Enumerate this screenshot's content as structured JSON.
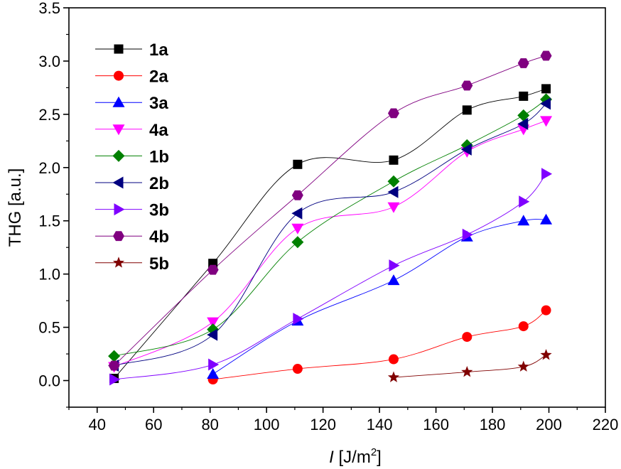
{
  "chart_data": {
    "type": "line",
    "title": "",
    "xlabel": "I [J/m²]",
    "xlabel_italic": "I",
    "xlabel_unit": " [J/m",
    "xlabel_sup": "2",
    "xlabel_close": "]",
    "ylabel": "THG [a.u.]",
    "xlim": [
      30,
      220
    ],
    "ylim": [
      -0.25,
      3.5
    ],
    "xticks": [
      "40",
      "60",
      "80",
      "100",
      "120",
      "140",
      "160",
      "180",
      "200",
      "220"
    ],
    "yticks": [
      "0.0",
      "0.5",
      "1.0",
      "1.5",
      "2.0",
      "2.5",
      "3.0",
      "3.5"
    ],
    "legend_position": "top-left",
    "series": [
      {
        "name": "1a",
        "color": "#000000",
        "marker": "square",
        "x": [
          46,
          81,
          111,
          145,
          171,
          191,
          199
        ],
        "y": [
          0.02,
          1.1,
          2.03,
          2.07,
          2.54,
          2.67,
          2.74
        ]
      },
      {
        "name": "2a",
        "color": "#ff0000",
        "marker": "circle",
        "x": [
          81,
          111,
          145,
          171,
          191,
          199
        ],
        "y": [
          0.01,
          0.11,
          0.2,
          0.41,
          0.51,
          0.66
        ]
      },
      {
        "name": "3a",
        "color": "#0000ff",
        "marker": "triangle-up",
        "x": [
          81,
          111,
          145,
          171,
          191,
          199
        ],
        "y": [
          0.06,
          0.56,
          0.94,
          1.35,
          1.5,
          1.51
        ]
      },
      {
        "name": "4a",
        "color": "#ff00ff",
        "marker": "triangle-down",
        "x": [
          46,
          81,
          111,
          145,
          171,
          191,
          199
        ],
        "y": [
          0.13,
          0.55,
          1.43,
          1.63,
          2.15,
          2.36,
          2.44
        ]
      },
      {
        "name": "1b",
        "color": "#008000",
        "marker": "diamond",
        "x": [
          46,
          81,
          111,
          145,
          171,
          191,
          199
        ],
        "y": [
          0.23,
          0.48,
          1.3,
          1.87,
          2.21,
          2.49,
          2.64
        ]
      },
      {
        "name": "2b",
        "color": "#000080",
        "marker": "triangle-left",
        "x": [
          46,
          81,
          111,
          145,
          171,
          191,
          199
        ],
        "y": [
          0.14,
          0.43,
          1.57,
          1.77,
          2.17,
          2.41,
          2.6
        ]
      },
      {
        "name": "3b",
        "color": "#8000ff",
        "marker": "triangle-right",
        "x": [
          46,
          81,
          111,
          145,
          171,
          191,
          199
        ],
        "y": [
          0.01,
          0.15,
          0.58,
          1.08,
          1.37,
          1.68,
          1.94
        ]
      },
      {
        "name": "4b",
        "color": "#800080",
        "marker": "hexagon",
        "x": [
          46,
          81,
          111,
          145,
          171,
          191,
          199
        ],
        "y": [
          0.14,
          1.04,
          1.74,
          2.51,
          2.77,
          2.98,
          3.05
        ]
      },
      {
        "name": "5b",
        "color": "#800000",
        "marker": "star",
        "x": [
          145,
          171,
          191,
          199
        ],
        "y": [
          0.03,
          0.08,
          0.13,
          0.24
        ]
      }
    ]
  }
}
